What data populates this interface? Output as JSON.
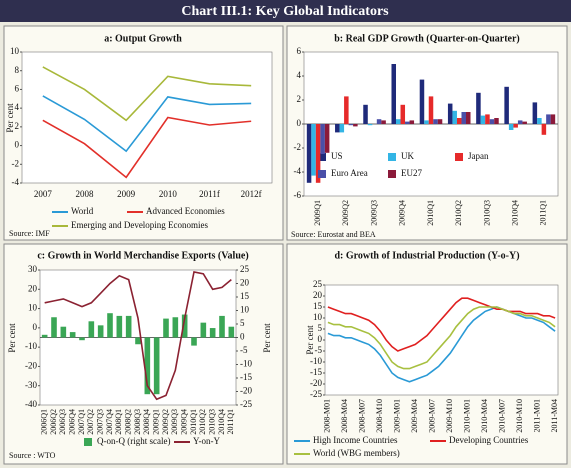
{
  "title": "Chart III.1: Key Global Indicators",
  "chart_data": [
    {
      "type": "line",
      "title": "a: Output Growth",
      "ylabel": "Per cent",
      "source": "Source: IMF",
      "categories": [
        "2007",
        "2008",
        "2009",
        "2010",
        "2011f",
        "2012f"
      ],
      "ylim": [
        -4,
        10
      ],
      "yticks": [
        -4,
        -2,
        0,
        2,
        4,
        6,
        8,
        10
      ],
      "series": [
        {
          "name": "World",
          "color": "#2a9ad6",
          "values": [
            5.3,
            2.8,
            -0.6,
            5.2,
            4.4,
            4.5
          ]
        },
        {
          "name": "Advanced Economies",
          "color": "#e2302a",
          "values": [
            2.7,
            0.2,
            -3.4,
            3.0,
            2.2,
            2.6
          ]
        },
        {
          "name": "Emerging and Developing Economies",
          "color": "#a8b83a",
          "values": [
            8.4,
            6.0,
            2.7,
            7.4,
            6.6,
            6.4
          ]
        }
      ]
    },
    {
      "type": "bar",
      "title": "b: Real GDP Growth (Quarter-on-Quarter)",
      "source": "Source: Eurostat and BEA",
      "categories": [
        "2009Q1",
        "2009Q2",
        "2009Q3",
        "2009Q4",
        "2010Q1",
        "2010Q2",
        "2010Q3",
        "2010Q4",
        "2011Q1"
      ],
      "ylim": [
        -6,
        6
      ],
      "yticks": [
        -6,
        -4,
        -2,
        0,
        2,
        4,
        6
      ],
      "series": [
        {
          "name": "US",
          "color": "#1f2a7a",
          "values": [
            -4.9,
            -0.7,
            1.6,
            5.0,
            3.7,
            1.7,
            2.6,
            3.1,
            1.8
          ]
        },
        {
          "name": "UK",
          "color": "#33b5e5",
          "values": [
            -4.3,
            -0.7,
            -0.1,
            0.4,
            0.3,
            1.1,
            0.7,
            -0.5,
            0.5
          ]
        },
        {
          "name": "Japan",
          "color": "#e62a2a",
          "values": [
            -4.9,
            2.3,
            0.0,
            1.6,
            2.3,
            0.5,
            0.8,
            -0.3,
            -0.9
          ]
        },
        {
          "name": "Euro Area",
          "color": "#4a4fa8",
          "values": [
            -2.5,
            -0.1,
            0.4,
            0.2,
            0.4,
            1.0,
            0.4,
            0.3,
            0.8
          ]
        },
        {
          "name": "EU27",
          "color": "#8b1a3a",
          "values": [
            -2.4,
            -0.2,
            0.3,
            0.3,
            0.4,
            1.0,
            0.5,
            0.2,
            0.8
          ]
        }
      ]
    },
    {
      "type": "bar",
      "title": "c: Growth in World Merchandise Exports (Value)",
      "ylabel": "Per cent",
      "y2label": "Per cent",
      "source": "Source : WTO",
      "categories": [
        "2006Q1",
        "2006Q2",
        "2006Q3",
        "2006Q4",
        "2007Q1",
        "2007Q2",
        "2007Q3",
        "2007Q4",
        "2008Q1",
        "2008Q2",
        "2008Q3",
        "2008Q4",
        "2009Q1",
        "2009Q2",
        "2009Q3",
        "2009Q4",
        "2010Q1",
        "2010Q2",
        "2010Q3",
        "2010Q4",
        "2011Q1"
      ],
      "ylim": [
        -40,
        30
      ],
      "yticks": [
        -40,
        -30,
        -20,
        -10,
        0,
        10,
        20,
        30
      ],
      "y2lim": [
        -25,
        25
      ],
      "y2ticks": [
        -25,
        -20,
        -15,
        -10,
        -5,
        0,
        5,
        10,
        15,
        20,
        25
      ],
      "series": [
        {
          "name": "Q-on-Q (right scale)",
          "color": "#3aa655",
          "axis": "y2",
          "type": "bar",
          "values": [
            1,
            7.5,
            4,
            2,
            -1,
            6,
            4.5,
            9,
            8,
            8,
            -2.5,
            -21,
            -21,
            7,
            7.5,
            8.5,
            -3,
            5.5,
            3.5,
            8,
            4
          ]
        },
        {
          "name": "Y-on-Y",
          "color": "#8b2232",
          "type": "line",
          "values": [
            13,
            14,
            15,
            13,
            11,
            13,
            18,
            23,
            27,
            25,
            5,
            -30,
            -37,
            -35,
            -22,
            5,
            29,
            28,
            20,
            21,
            25
          ]
        }
      ]
    },
    {
      "type": "line",
      "title": "d: Growth of Industrial Production (Y-o-Y)",
      "ylabel": "Per cent",
      "categories": [
        "2008-M01",
        null,
        null,
        "2008-M04",
        null,
        null,
        "2008-M07",
        null,
        null,
        "2008-M10",
        null,
        null,
        "2009-M01",
        null,
        null,
        "2009-M04",
        null,
        null,
        "2009-M07",
        null,
        null,
        "2009-M10",
        null,
        null,
        "2010-M01",
        null,
        null,
        "2010-M04",
        null,
        null,
        "2010-M07",
        null,
        null,
        "2010-M10",
        null,
        null,
        "2011-M01",
        null,
        null,
        "2011-M04"
      ],
      "ylim": [
        -25,
        25
      ],
      "yticks": [
        -25,
        -20,
        -15,
        -10,
        -5,
        0,
        5,
        10,
        15,
        20,
        25
      ],
      "series": [
        {
          "name": "High Income Countries",
          "color": "#2a9ad6",
          "values": [
            3,
            2,
            2,
            1,
            1,
            0,
            -1,
            -2,
            -4,
            -7,
            -11,
            -15,
            -17,
            -18,
            -19,
            -18,
            -17,
            -16,
            -14,
            -12,
            -9,
            -6,
            -2,
            2,
            6,
            9,
            11,
            13,
            14,
            15,
            14,
            13,
            12,
            11,
            10,
            10,
            9,
            8,
            6,
            4
          ]
        },
        {
          "name": "Developing Countries",
          "color": "#e02020",
          "values": [
            15,
            14,
            13,
            12,
            12,
            11,
            10,
            9,
            7,
            4,
            0,
            -3,
            -5,
            -4,
            -3,
            -2,
            0,
            2,
            5,
            8,
            11,
            14,
            17,
            19,
            19,
            18,
            17,
            16,
            15,
            14,
            14,
            13,
            13,
            13,
            12,
            12,
            12,
            11,
            11,
            10
          ]
        },
        {
          "name": "World (WBG members)",
          "color": "#a8c040",
          "values": [
            8,
            7,
            7,
            6,
            6,
            5,
            4,
            3,
            1,
            -2,
            -6,
            -10,
            -12,
            -13,
            -13,
            -12,
            -11,
            -10,
            -7,
            -4,
            -1,
            2,
            6,
            9,
            12,
            14,
            15,
            15,
            15,
            15,
            14,
            13,
            12,
            12,
            11,
            11,
            10,
            9,
            8,
            6
          ]
        }
      ]
    }
  ]
}
